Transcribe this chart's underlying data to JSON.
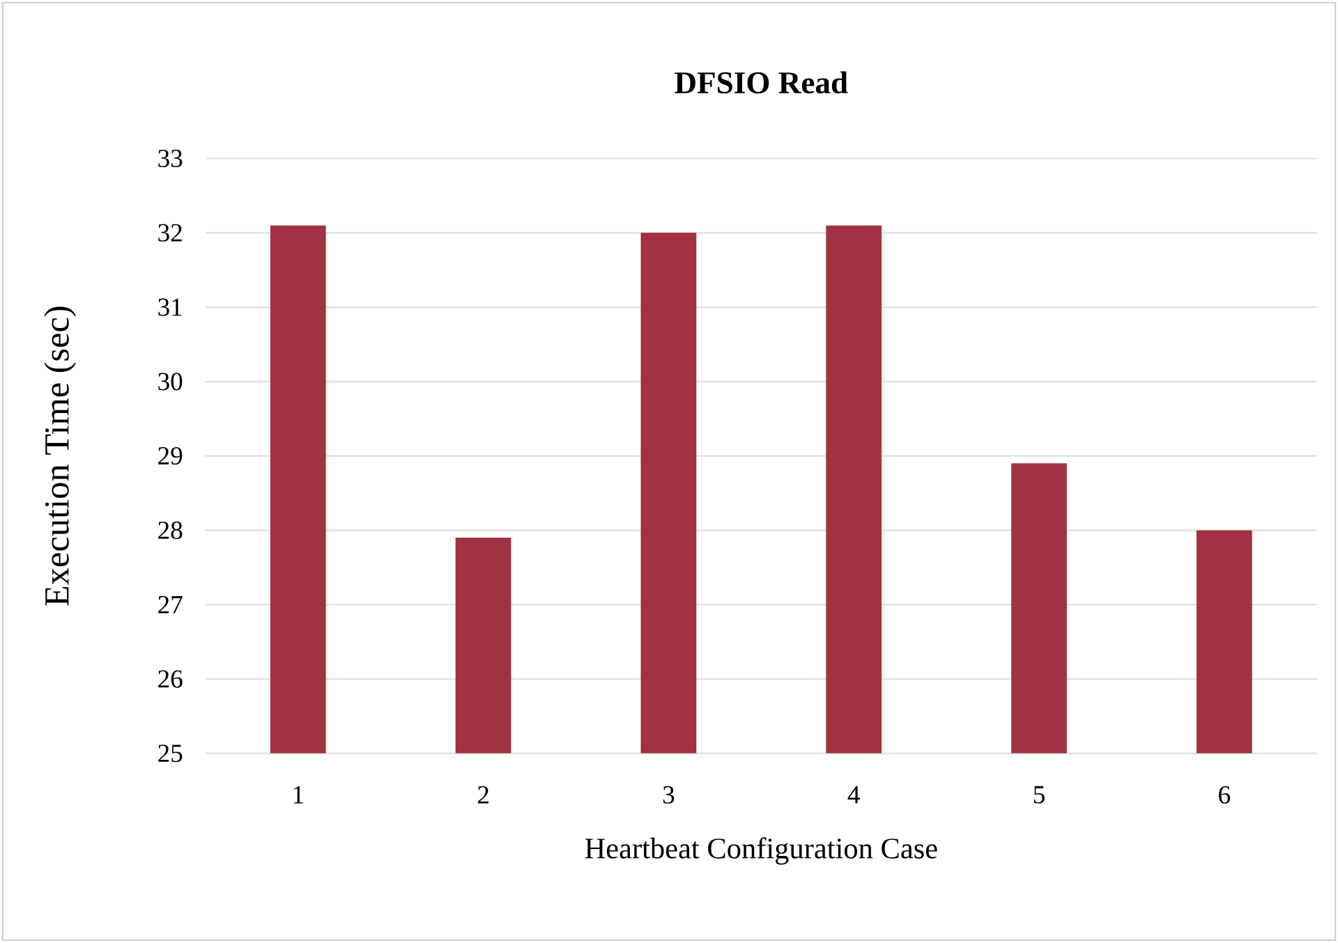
{
  "chart_data": {
    "type": "bar",
    "title": "DFSIO Read",
    "xlabel": "Heartbeat Configuration Case",
    "ylabel": "Execution Time (sec)",
    "categories": [
      "1",
      "2",
      "3",
      "4",
      "5",
      "6"
    ],
    "values": [
      32.1,
      27.9,
      32.0,
      32.1,
      28.9,
      28.0
    ],
    "color": "#a03241",
    "ylim": [
      25,
      33
    ],
    "yticks": [
      25,
      26,
      27,
      28,
      29,
      30,
      31,
      32,
      33
    ],
    "grid": "y"
  }
}
